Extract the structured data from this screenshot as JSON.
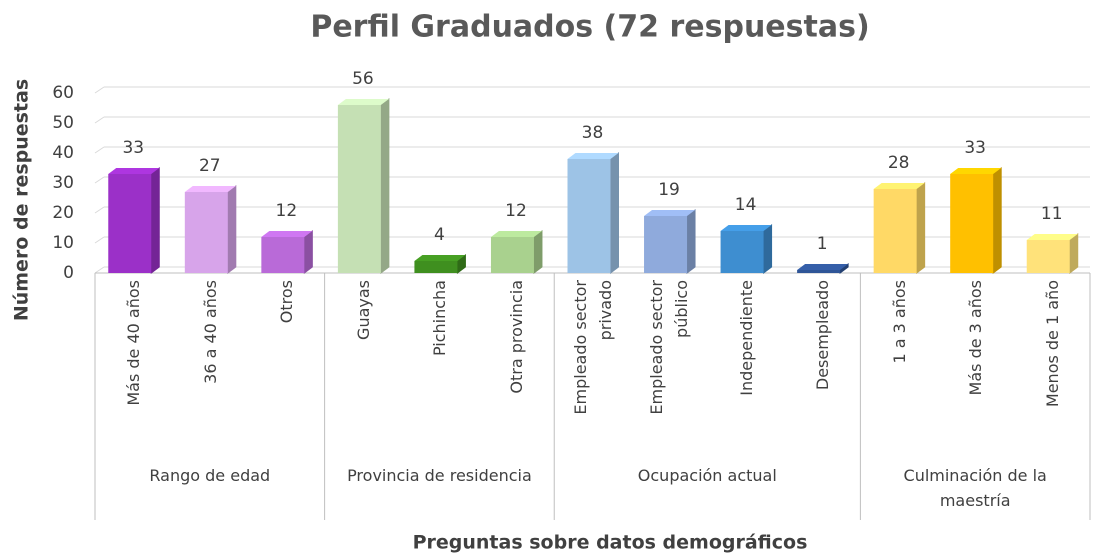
{
  "chart_data": {
    "type": "bar",
    "title": "Perfil Graduados (72 respuestas)",
    "x_label": "Preguntas sobre datos demográficos",
    "y_label": "Número de respuestas",
    "categories": [
      "Más de 40 años",
      "36 a 40 años",
      "Otros",
      "Guayas",
      "Pichincha",
      "Otra provincia",
      "Empleado sector privado",
      "Empleado sector público",
      "Independiente",
      "Desempleado",
      "1 a 3 años",
      "Más de 3 años",
      "Menos de 1 año"
    ],
    "values": [
      33,
      27,
      12,
      56,
      4,
      12,
      38,
      19,
      14,
      1,
      28,
      33,
      11
    ],
    "colors": [
      "#9b30c8",
      "#d7a4ea",
      "#b96ad8",
      "#c5e0b4",
      "#3f8f1f",
      "#a9d18e",
      "#9dc3e6",
      "#8faadc",
      "#3e8ed0",
      "#2f5597",
      "#ffd966",
      "#ffc000",
      "#ffe27a"
    ],
    "groups": [
      {
        "label": "Rango de edad",
        "size": 3
      },
      {
        "label": "Provincia de residencia",
        "size": 3
      },
      {
        "label": "Ocupación actual",
        "size": 4
      },
      {
        "label": "Culminación de la maestría",
        "size": 3
      }
    ],
    "ylim": [
      0,
      60
    ],
    "yticks": [
      0,
      10,
      20,
      30,
      40,
      50,
      60
    ],
    "grid": true
  }
}
